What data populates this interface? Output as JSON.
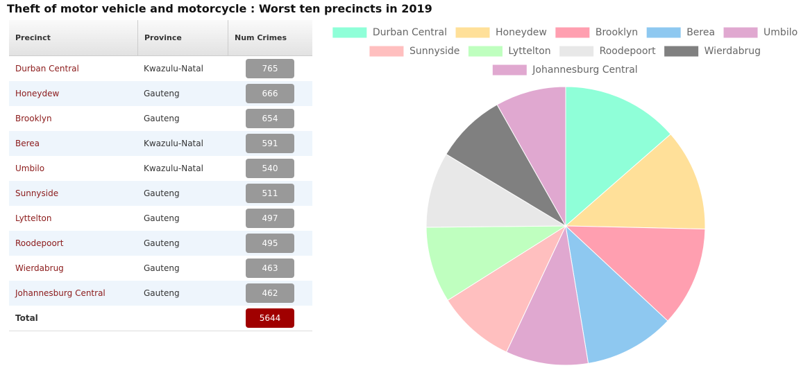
{
  "title": "Theft of motor vehicle and motorcycle : Worst ten precincts in 2019",
  "table": {
    "columns": [
      "Precinct",
      "Province",
      "Num Crimes"
    ],
    "rows": [
      {
        "precinct": "Durban Central",
        "province": "Kwazulu-Natal",
        "crimes": 765
      },
      {
        "precinct": "Honeydew",
        "province": "Gauteng",
        "crimes": 666
      },
      {
        "precinct": "Brooklyn",
        "province": "Gauteng",
        "crimes": 654
      },
      {
        "precinct": "Berea",
        "province": "Kwazulu-Natal",
        "crimes": 591
      },
      {
        "precinct": "Umbilo",
        "province": "Kwazulu-Natal",
        "crimes": 540
      },
      {
        "precinct": "Sunnyside",
        "province": "Gauteng",
        "crimes": 511
      },
      {
        "precinct": "Lyttelton",
        "province": "Gauteng",
        "crimes": 497
      },
      {
        "precinct": "Roodepoort",
        "province": "Gauteng",
        "crimes": 495
      },
      {
        "precinct": "Wierdabrug",
        "province": "Gauteng",
        "crimes": 463
      },
      {
        "precinct": "Johannesburg Central",
        "province": "Gauteng",
        "crimes": 462
      }
    ],
    "total": {
      "label": "Total",
      "crimes": 5644
    }
  },
  "chart_data": {
    "type": "pie",
    "categories": [
      "Durban Central",
      "Honeydew",
      "Brooklyn",
      "Berea",
      "Umbilo",
      "Sunnyside",
      "Lyttelton",
      "Roodepoort",
      "Wierdabrug",
      "Johannesburg Central"
    ],
    "values": [
      765,
      666,
      654,
      591,
      540,
      511,
      497,
      495,
      463,
      462
    ],
    "colors": [
      "#8fffd8",
      "#ffe099",
      "#ff9fb0",
      "#8ec8f0",
      "#e0a8d0",
      "#ffbfbf",
      "#bfffbf",
      "#e8e8e8",
      "#808080",
      "#e0a8d0"
    ],
    "legend": "top"
  }
}
